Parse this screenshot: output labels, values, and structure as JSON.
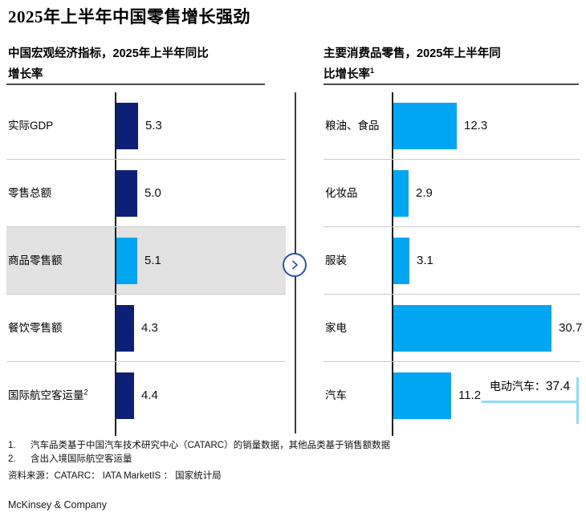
{
  "title": "2025年上半年中国零售增长强劲",
  "chart_data": [
    {
      "type": "bar",
      "orientation": "horizontal",
      "subtitle": {
        "line1": "中国宏观经济指标，2025年上半年同比",
        "line2": "增长率",
        "sup": ""
      },
      "categories": [
        "实际GDP",
        "零售总额",
        "商品零售额",
        "餐饮零售额",
        "国际航空客运量"
      ],
      "values": [
        5.3,
        5.0,
        5.1,
        4.3,
        4.4
      ],
      "bars": [
        {
          "label": "实际GDP",
          "label_sup": "",
          "value": "5.3",
          "color": "#0d2078",
          "highlighted": false
        },
        {
          "label": "零售总额",
          "label_sup": "",
          "value": "5.0",
          "color": "#0d2078",
          "highlighted": false
        },
        {
          "label": "商品零售额",
          "label_sup": "",
          "value": "5.1",
          "color": "#00a6f2",
          "highlighted": true
        },
        {
          "label": "餐饮零售额",
          "label_sup": "",
          "value": "4.3",
          "color": "#0d2078",
          "highlighted": false
        },
        {
          "label": "国际航空客运量",
          "label_sup": "2",
          "value": "4.4",
          "color": "#0d2078",
          "highlighted": false
        }
      ],
      "highlight_band_color": "#e2e2e2",
      "grid": false,
      "legend": false
    },
    {
      "type": "bar",
      "orientation": "horizontal",
      "subtitle": {
        "line1": "主要消费品零售，2025年上半年同",
        "line2": "比增长率",
        "sup": "1"
      },
      "categories": [
        "粮油、食品",
        "化妆品",
        "服装",
        "家电",
        "汽车"
      ],
      "values": [
        12.3,
        2.9,
        3.1,
        30.7,
        11.2
      ],
      "bars": [
        {
          "label": "粮油、食品",
          "label_sup": "",
          "value": "12.3",
          "color": "#00a6f2",
          "highlighted": false
        },
        {
          "label": "化妆品",
          "label_sup": "",
          "value": "2.9",
          "color": "#00a6f2",
          "highlighted": false
        },
        {
          "label": "服装",
          "label_sup": "",
          "value": "3.1",
          "color": "#00a6f2",
          "highlighted": false
        },
        {
          "label": "家电",
          "label_sup": "",
          "value": "30.7",
          "color": "#00a6f2",
          "highlighted": false
        },
        {
          "label": "汽车",
          "label_sup": "",
          "value": "11.2",
          "color": "#00a6f2",
          "highlighted": false
        }
      ],
      "annotation": {
        "label": "电动汽车：",
        "value": "37.4",
        "line_color": "#8fdbf7"
      },
      "grid": false,
      "legend": false
    }
  ],
  "connector": {
    "chevron_color": "#2e54a5"
  },
  "footnotes": [
    {
      "num": "1.",
      "text": "汽车品类基于中国汽车技术研究中心（CATARC）的销量数据，其他品类基于销售额数据"
    },
    {
      "num": "2.",
      "text": "含出入境国际航空客运量"
    }
  ],
  "source": "资料来源：CATARC： IATA MarketIS ： 国家统计局",
  "brand": "McKinsey & Company"
}
